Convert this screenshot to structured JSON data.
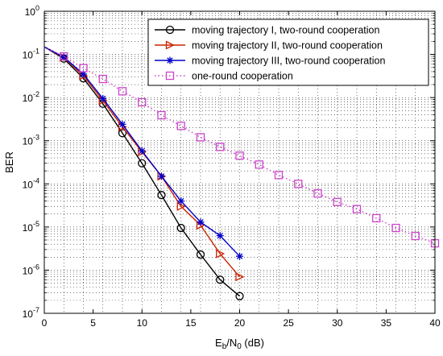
{
  "chart_data": {
    "type": "line",
    "title": "",
    "xlabel": {
      "main": "E",
      "sub1": "b",
      "slash": "/N",
      "sub2": "0",
      "unit": " (dB)"
    },
    "ylabel": "BER",
    "xlim": [
      0,
      40
    ],
    "ylim_log10": [
      -7,
      0
    ],
    "x_scale": "linear",
    "y_scale": "log",
    "grid": "dotted",
    "legend_placement": "top-right",
    "x_ticks": [
      "0",
      "5",
      "10",
      "15",
      "20",
      "25",
      "30",
      "35",
      "40"
    ],
    "x_tick_values": [
      0,
      5,
      10,
      15,
      20,
      25,
      30,
      35,
      40
    ],
    "y_tick_exponents": [
      0,
      -1,
      -2,
      -3,
      -4,
      -5,
      -6,
      -7
    ],
    "y_tick_base": "10",
    "series": [
      {
        "name": "moving trajectory I, two-round cooperation",
        "color": "#000000",
        "marker": "circle",
        "line": "solid",
        "x": [
          0,
          2,
          4,
          6,
          8,
          10,
          12,
          14,
          16,
          18,
          20
        ],
        "y": [
          0.15,
          0.08,
          0.028,
          0.0072,
          0.0015,
          0.0003,
          5.5e-05,
          9.5e-06,
          2.3e-06,
          6e-07,
          2.5e-07
        ]
      },
      {
        "name": "moving trajectory II, two-round cooperation",
        "color": "#cc2200",
        "marker": "triangle-right",
        "line": "solid",
        "x": [
          0,
          2,
          4,
          6,
          8,
          10,
          12,
          14,
          16,
          18,
          20
        ],
        "y": [
          0.15,
          0.085,
          0.032,
          0.0085,
          0.0021,
          0.00055,
          0.00015,
          3e-05,
          1.1e-05,
          2.4e-06,
          7e-07
        ]
      },
      {
        "name": "moving trajectory III, two-round cooperation",
        "color": "#0000cc",
        "marker": "asterisk",
        "line": "solid",
        "x": [
          0,
          2,
          4,
          6,
          8,
          10,
          12,
          14,
          16,
          18,
          20
        ],
        "y": [
          0.15,
          0.087,
          0.035,
          0.0095,
          0.0024,
          0.00058,
          0.00015,
          4e-05,
          1.3e-05,
          6.3e-06,
          2.1e-06
        ]
      },
      {
        "name": "one-round cooperation",
        "color": "#cc44cc",
        "marker": "square",
        "line": "dotted",
        "x": [
          0,
          2,
          4,
          6,
          8,
          10,
          12,
          14,
          16,
          18,
          20,
          22,
          24,
          26,
          28,
          30,
          32,
          34,
          36,
          38,
          40
        ],
        "y": [
          0.15,
          0.09,
          0.048,
          0.027,
          0.014,
          0.0078,
          0.0039,
          0.0022,
          0.0012,
          0.00072,
          0.00045,
          0.00028,
          0.00016,
          0.0001,
          6e-05,
          3.8e-05,
          2.6e-05,
          1.6e-05,
          9.5e-06,
          6.2e-06,
          4.2e-06
        ]
      }
    ]
  }
}
